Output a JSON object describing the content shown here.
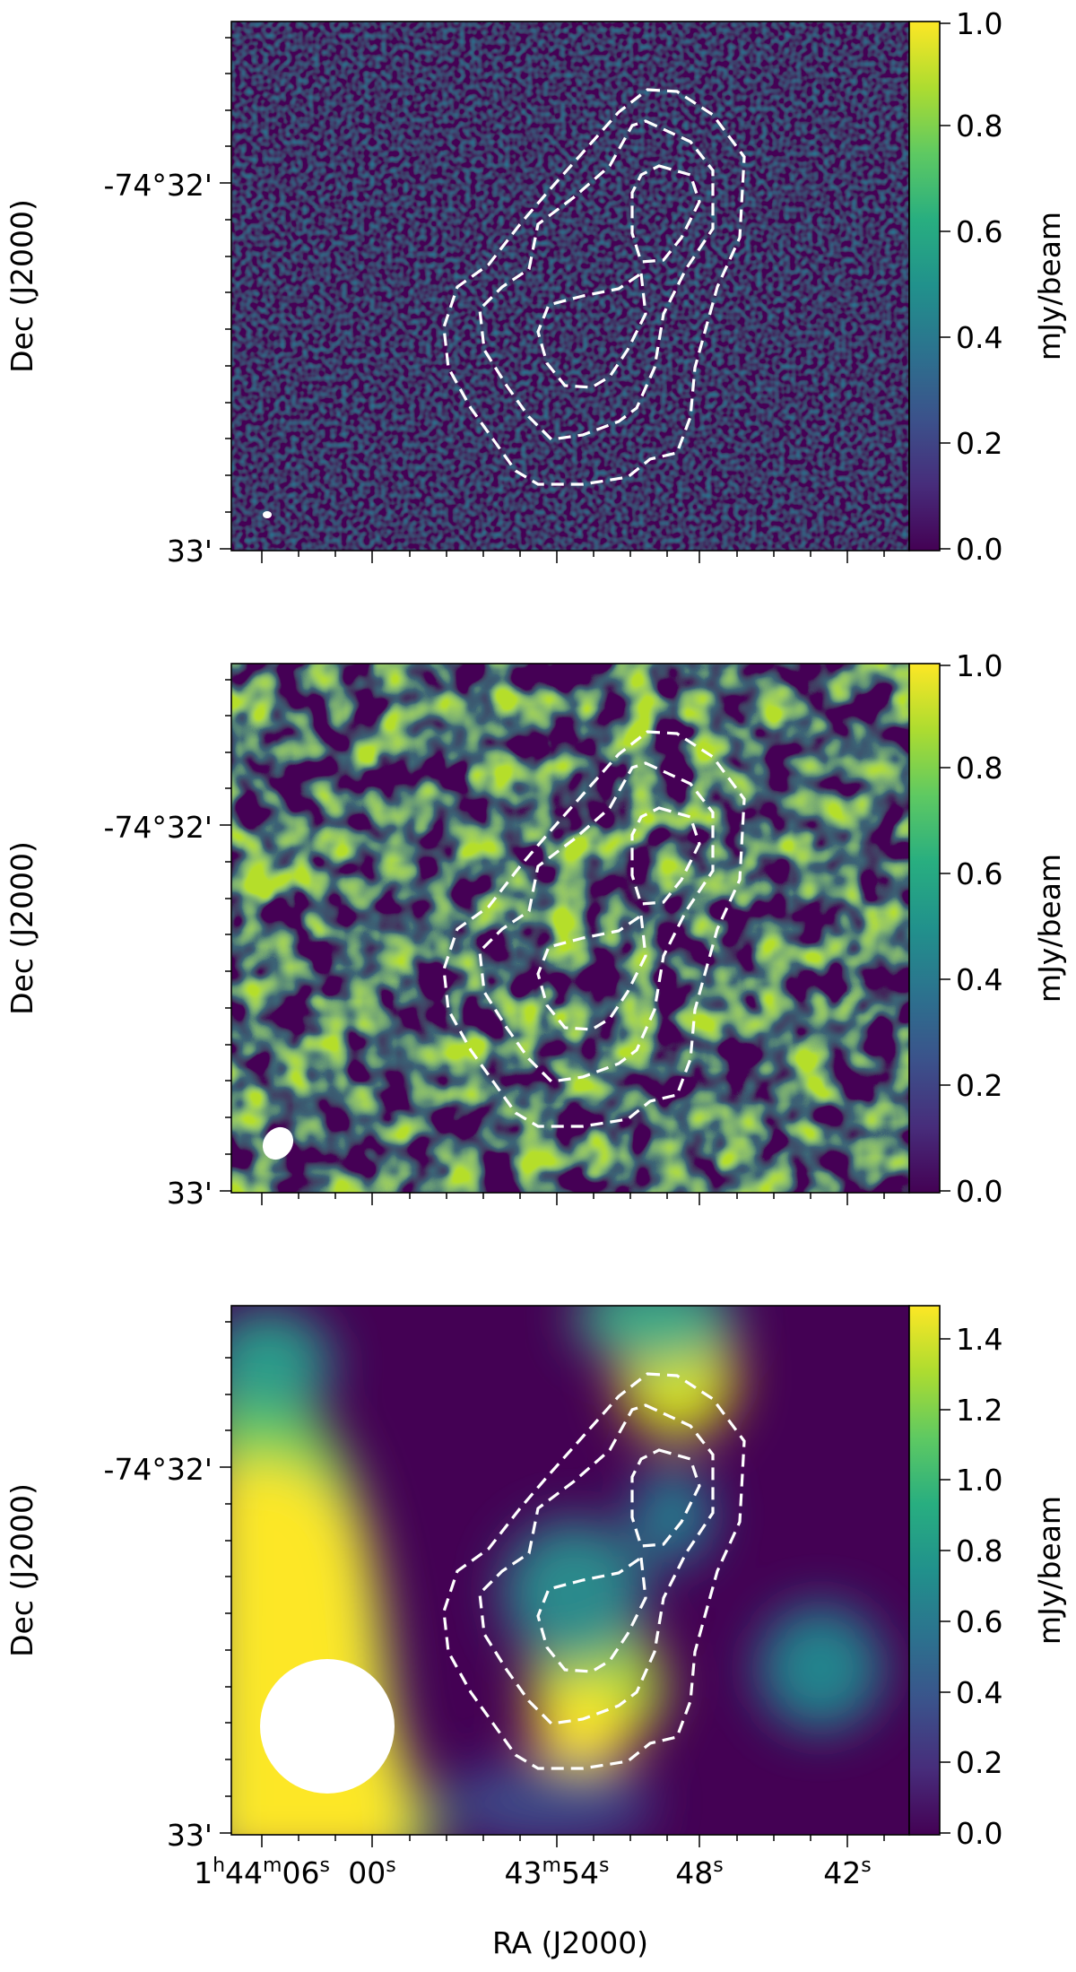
{
  "chart_data": [
    {
      "type": "heatmap",
      "panel": "top",
      "ylabel": "Dec (J2000)",
      "ytick_labels": [
        "-74°32'",
        "33'"
      ],
      "colorbar": {
        "label": "mJy/beam",
        "range": [
          0.0,
          1.0
        ],
        "ticks": [
          "0.0",
          "0.2",
          "0.4",
          "0.6",
          "0.8",
          "1.0"
        ]
      },
      "colormap": "viridis",
      "image_texture": "pixel noise",
      "beam": "small ellipse",
      "contours": "3 dashed white contour levels"
    },
    {
      "type": "heatmap",
      "panel": "middle",
      "ylabel": "Dec (J2000)",
      "ytick_labels": [
        "-74°32'",
        "33'"
      ],
      "colorbar": {
        "label": "mJy/beam",
        "range": [
          0.0,
          1.0
        ],
        "ticks": [
          "0.0",
          "0.2",
          "0.4",
          "0.6",
          "0.8",
          "1.0"
        ]
      },
      "colormap": "viridis",
      "image_texture": "smoothed noise",
      "beam": "medium ellipse",
      "contours": "3 dashed white contour levels"
    },
    {
      "type": "heatmap",
      "panel": "bottom",
      "xlabel": "RA (J2000)",
      "xtick_labels": [
        "1h44m06s",
        "00s",
        "43m54s",
        "48s",
        "42s"
      ],
      "ylabel": "Dec (J2000)",
      "ytick_labels": [
        "-74°32'",
        "33'"
      ],
      "colorbar": {
        "label": "mJy/beam",
        "range": [
          0.0,
          1.5
        ],
        "ticks": [
          "0.0",
          "0.2",
          "0.4",
          "0.6",
          "0.8",
          "1.0",
          "1.2",
          "1.4"
        ]
      },
      "colormap": "viridis",
      "image_texture": "large-scale smooth emission",
      "beam": "large circle",
      "contours": "3 dashed white contour levels"
    }
  ],
  "colors": {
    "viridis_low": "#440154",
    "viridis_high": "#fde725",
    "contour": "#ffffff",
    "axes": "#000000"
  }
}
